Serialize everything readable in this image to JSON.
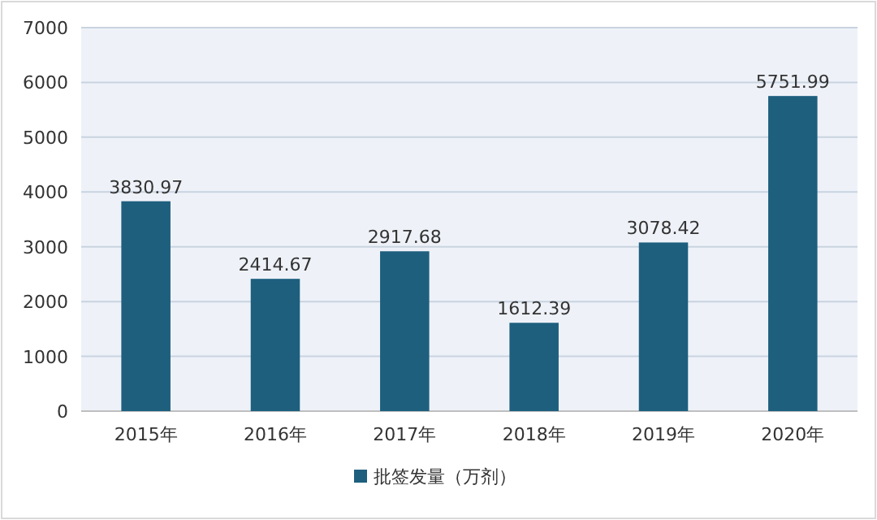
{
  "chart_data": {
    "type": "bar",
    "categories": [
      "2015年",
      "2016年",
      "2017年",
      "2018年",
      "2019年",
      "2020年"
    ],
    "series": [
      {
        "name": "批签发量（万剂）",
        "color": "#1e5f7e",
        "values": [
          3830.97,
          2414.67,
          2917.68,
          1612.39,
          3078.42,
          5751.99
        ]
      }
    ],
    "ylim": [
      0,
      7000
    ],
    "yticks": [
      0,
      1000,
      2000,
      3000,
      4000,
      5000,
      6000,
      7000
    ],
    "grid": "y",
    "legend": "bottom",
    "data_labels": true
  }
}
